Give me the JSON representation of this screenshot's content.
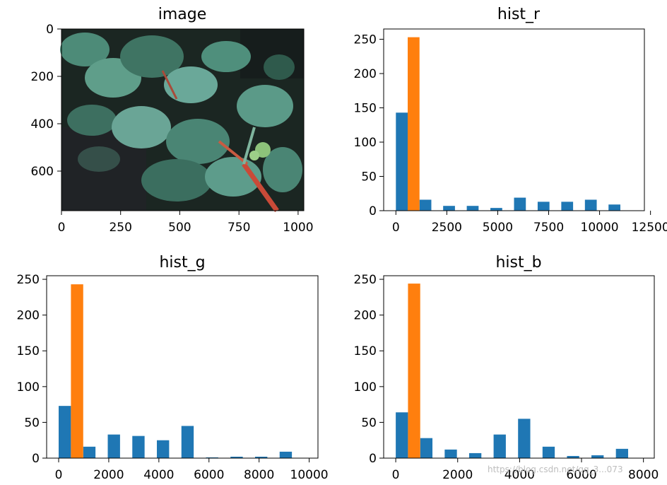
{
  "chart_data": [
    {
      "type": "image",
      "title": "image",
      "xlim": [
        0,
        1024
      ],
      "ylim": [
        768,
        0
      ],
      "xticks": [
        0,
        250,
        500,
        750,
        1000
      ],
      "yticks": [
        0,
        200,
        400,
        600
      ]
    },
    {
      "type": "bar",
      "title": "hist_r",
      "xlim": [
        -600,
        12200
      ],
      "ylim": [
        0,
        265
      ],
      "xticks": [
        0,
        2500,
        5000,
        7500,
        10000,
        12500
      ],
      "yticks": [
        0,
        50,
        100,
        150,
        200,
        250
      ],
      "bar_width": 580,
      "series": [
        {
          "color": "#1f77b4",
          "x": [
            290,
            1450,
            2610,
            3770,
            4930,
            6090,
            7250,
            8410,
            9570,
            10730
          ],
          "values": [
            143,
            16,
            7,
            7,
            4,
            19,
            13,
            13,
            16,
            9
          ]
        },
        {
          "color": "#ff7f0e",
          "x": [
            870
          ],
          "values": [
            253
          ]
        }
      ]
    },
    {
      "type": "bar",
      "title": "hist_g",
      "xlim": [
        -480,
        10350
      ],
      "ylim": [
        0,
        255
      ],
      "xticks": [
        0,
        2000,
        4000,
        6000,
        8000,
        10000
      ],
      "yticks": [
        0,
        50,
        100,
        150,
        200,
        250
      ],
      "bar_width": 490,
      "series": [
        {
          "color": "#1f77b4",
          "x": [
            245,
            1225,
            2205,
            3185,
            4165,
            5145,
            6125,
            7105,
            8085,
            9065
          ],
          "values": [
            73,
            16,
            33,
            31,
            25,
            45,
            1,
            2,
            2,
            9
          ]
        },
        {
          "color": "#ff7f0e",
          "x": [
            735
          ],
          "values": [
            243
          ]
        }
      ]
    },
    {
      "type": "bar",
      "title": "hist_b",
      "xlim": [
        -390,
        8350
      ],
      "ylim": [
        0,
        255
      ],
      "xticks": [
        0,
        2000,
        4000,
        6000,
        8000
      ],
      "yticks": [
        0,
        50,
        100,
        150,
        200,
        250
      ],
      "bar_width": 395,
      "series": [
        {
          "color": "#1f77b4",
          "x": [
            198,
            988,
            1778,
            2568,
            3358,
            4148,
            4938,
            5728,
            6518,
            7308
          ],
          "values": [
            64,
            28,
            12,
            7,
            33,
            55,
            16,
            3,
            4,
            13
          ]
        },
        {
          "color": "#ff7f0e",
          "x": [
            593
          ],
          "values": [
            244
          ]
        }
      ]
    }
  ],
  "watermark": "https://blog.csdn.net/qq_3...073"
}
